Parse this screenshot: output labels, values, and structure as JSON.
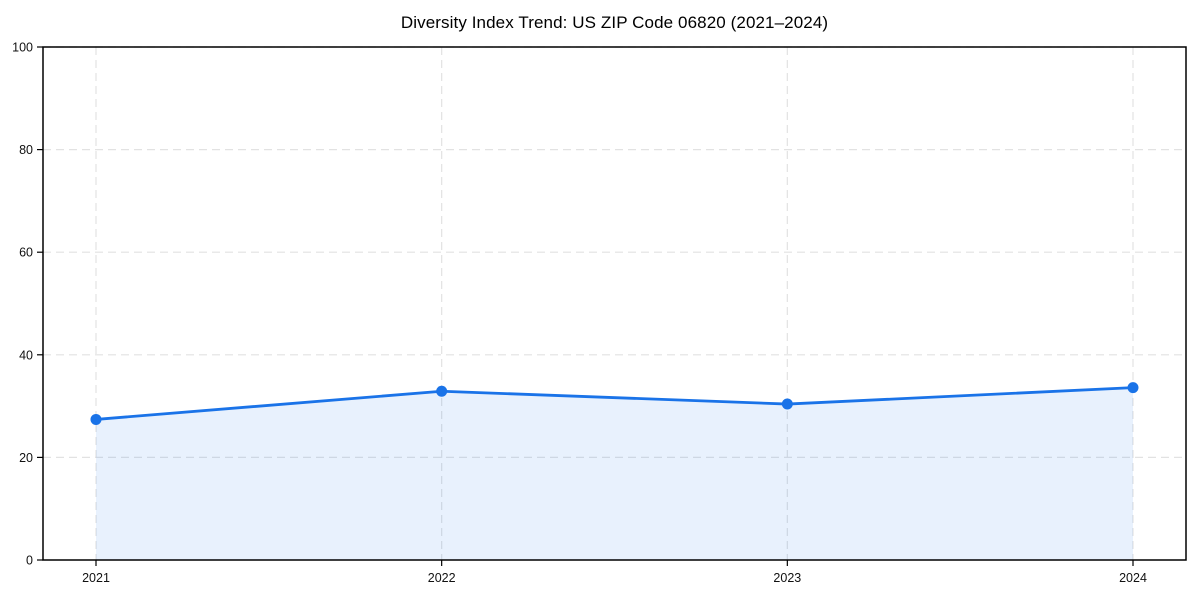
{
  "chart_data": {
    "type": "area",
    "title": "Diversity Index Trend: US ZIP Code 06820 (2021–2024)",
    "categories": [
      "2021",
      "2022",
      "2023",
      "2024"
    ],
    "series": [
      {
        "name": "Diversity Index",
        "values": [
          27.4,
          32.9,
          30.4,
          33.6
        ]
      }
    ],
    "xlabel": "",
    "ylabel": "",
    "ylim": [
      0,
      100
    ],
    "yticks": [
      0,
      20,
      40,
      60,
      80,
      100
    ],
    "grid": true,
    "grid_style": "dashed",
    "legend_position": "none",
    "colors": {
      "line": "#1a73e8",
      "marker": "#1a73e8",
      "fill": "rgba(26,115,232,0.10)",
      "grid": "#e2e2e2",
      "spine": "#000000",
      "tick_label": "#111111",
      "title": "#000000"
    }
  }
}
